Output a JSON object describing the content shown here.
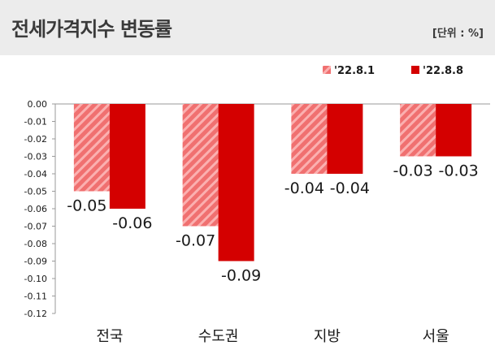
{
  "header": {
    "title": "전세가격지수 변동률",
    "unit": "[단위 : %]"
  },
  "colors": {
    "series_1": "#f07070",
    "series_1_stripe": "#fbb0b0",
    "series_2": "#d40000",
    "axis": "#9a9a9a",
    "text": "#1a1a1a",
    "header_bg": "#ececec"
  },
  "chart_data": {
    "type": "bar",
    "title": "전세가격지수 변동률",
    "categories": [
      "전국",
      "수도권",
      "지방",
      "서울"
    ],
    "series": [
      {
        "name": "'22.8.1",
        "values": [
          -0.05,
          -0.07,
          -0.04,
          -0.03
        ]
      },
      {
        "name": "'22.8.8",
        "values": [
          -0.06,
          -0.09,
          -0.04,
          -0.03
        ]
      }
    ],
    "data_labels": [
      [
        "-0.05",
        "-0.07",
        "-0.04",
        "-0.03"
      ],
      [
        "-0.06",
        "-0.09",
        "-0.04",
        "-0.03"
      ]
    ],
    "yticks": [
      "0.00",
      "-0.01",
      "-0.02",
      "-0.03",
      "-0.04",
      "-0.05",
      "-0.06",
      "-0.07",
      "-0.08",
      "-0.09",
      "-0.10",
      "-0.11",
      "-0.12"
    ],
    "ylim": [
      -0.12,
      0
    ],
    "xlabel": "",
    "ylabel": "",
    "grid": false,
    "legend_position": "top-right"
  }
}
